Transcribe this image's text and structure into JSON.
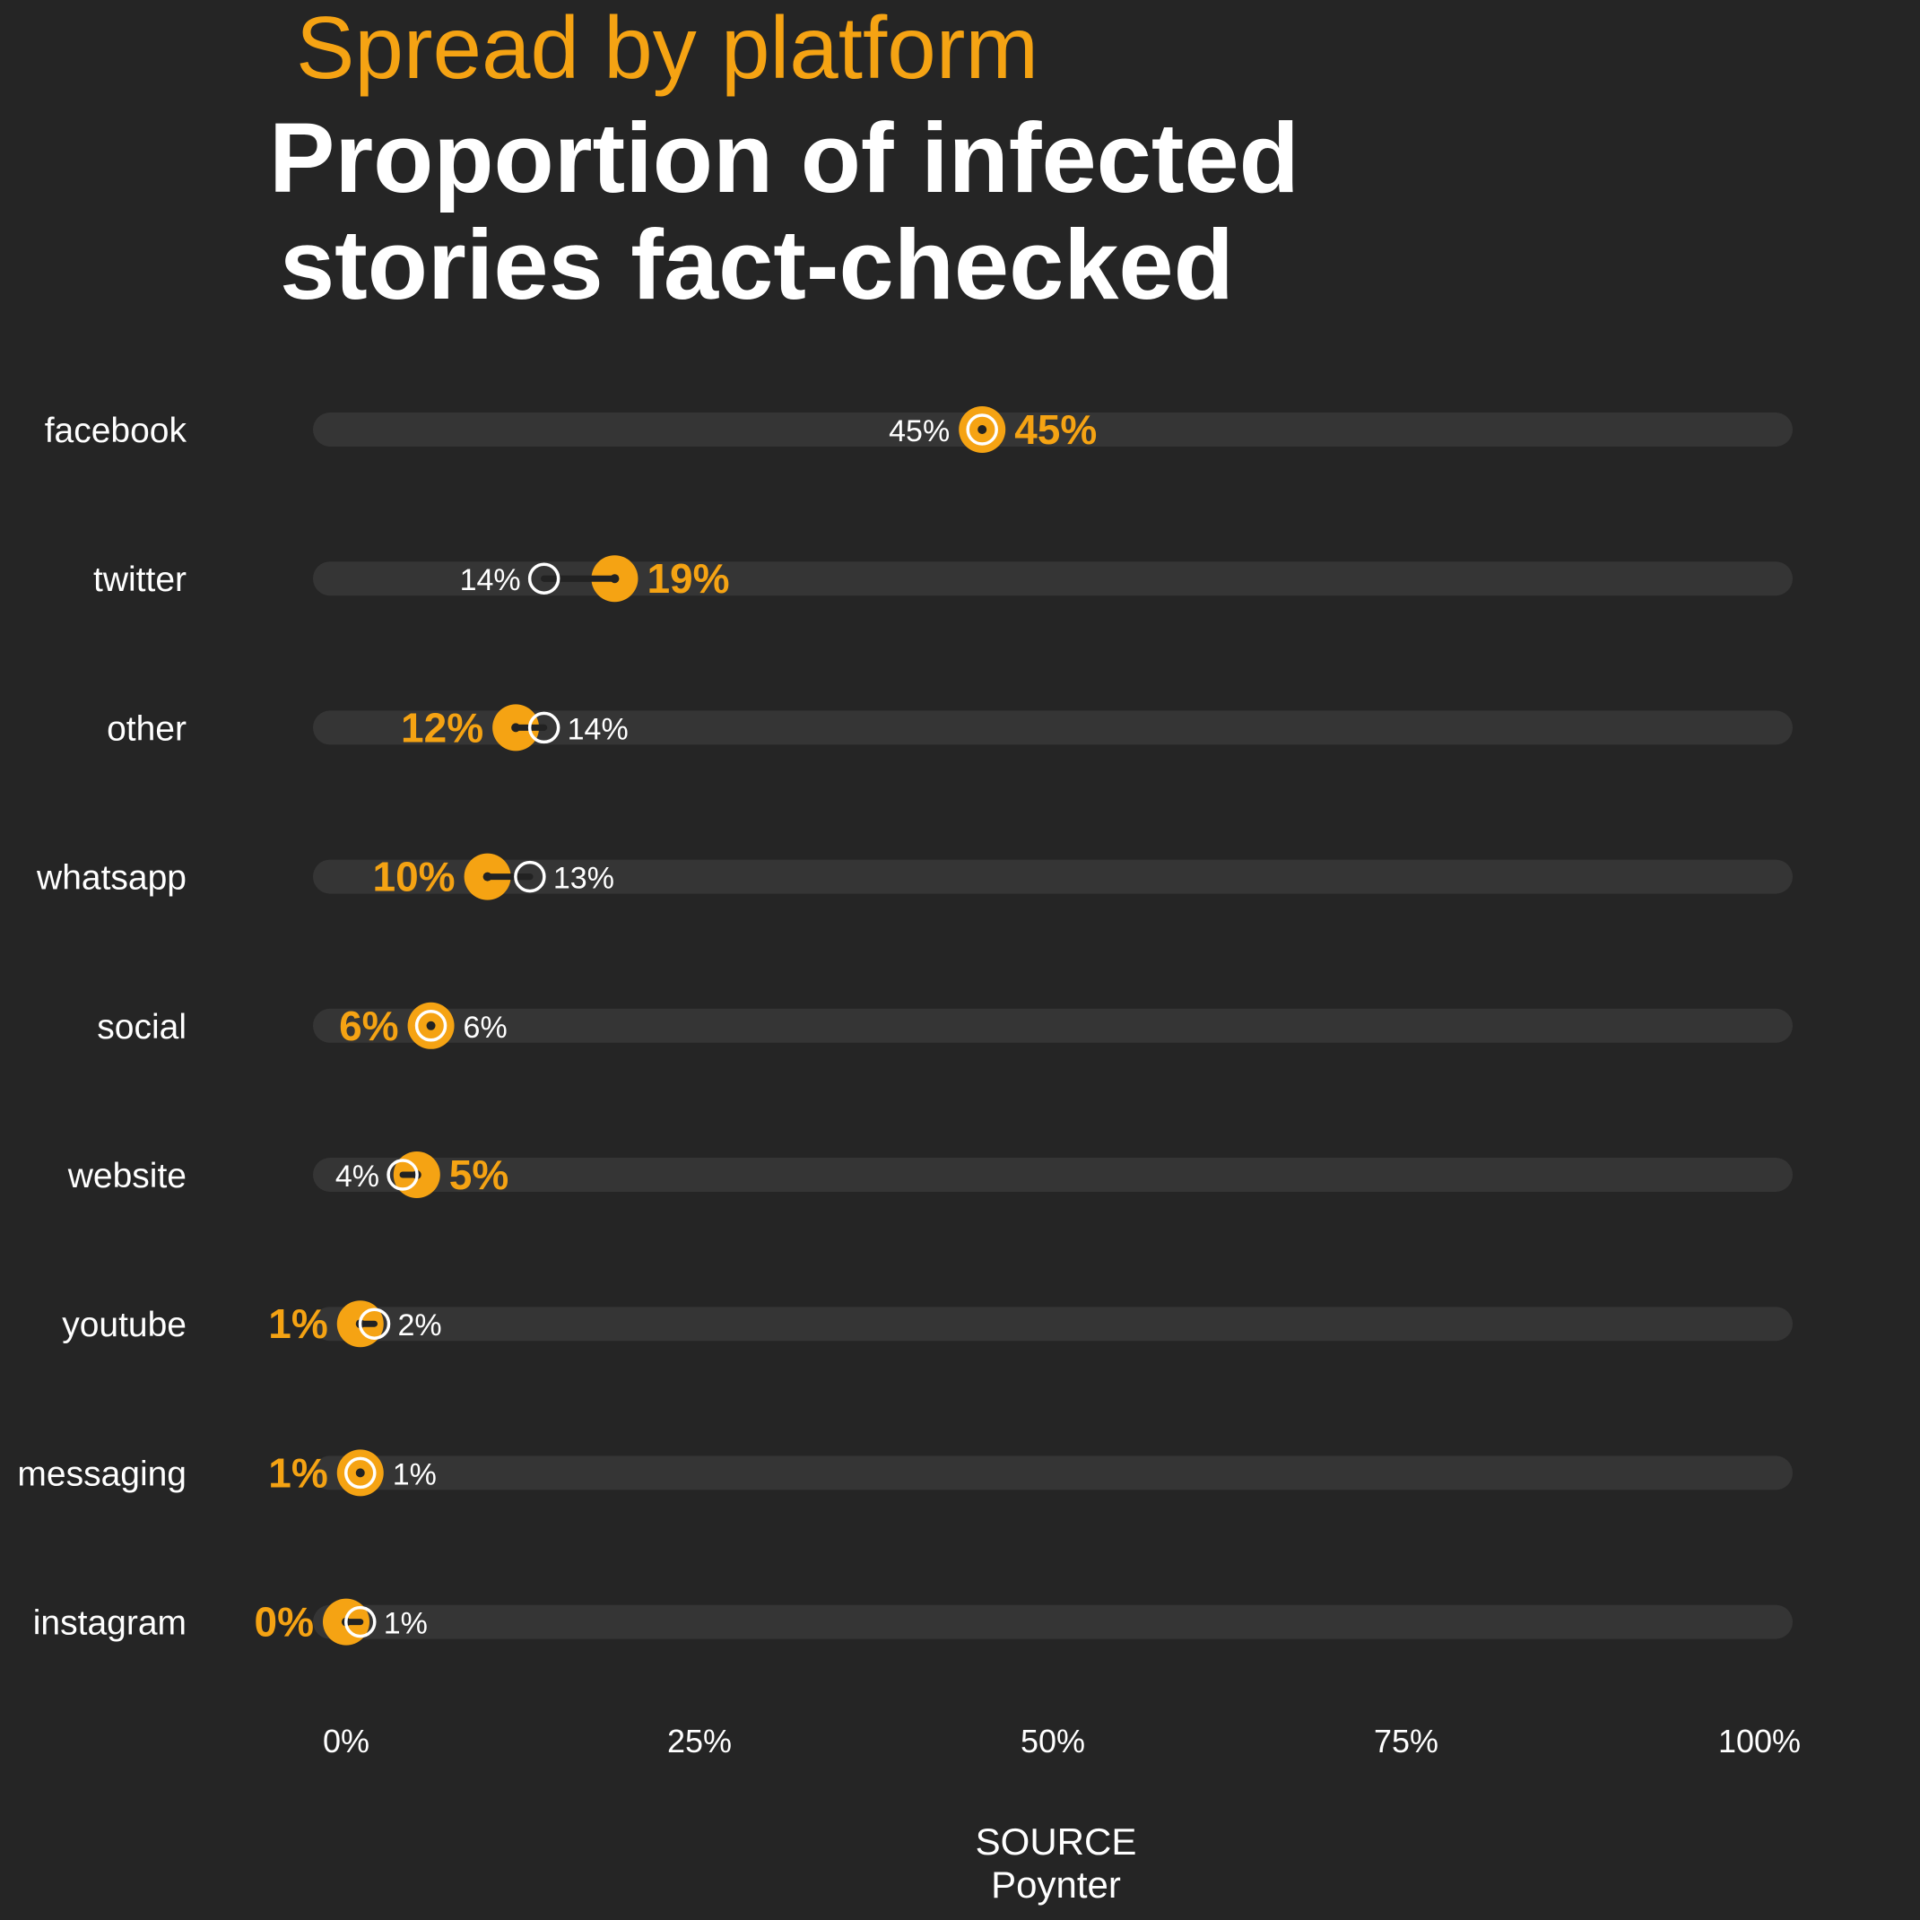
{
  "header": {
    "subtitle": "Spread by platform",
    "title_line1": "Proportion of infected",
    "title_line2": "stories fact-checked"
  },
  "source": {
    "label": "SOURCE",
    "name": "Poynter"
  },
  "colors": {
    "background": "#252525",
    "track": "#353535",
    "accent": "#F5A313",
    "outline": "#ffffff"
  },
  "chart_data": {
    "type": "dumbbell",
    "xlim": [
      0,
      100
    ],
    "x_ticks": [
      "0%",
      "25%",
      "50%",
      "75%",
      "100%"
    ],
    "x_tick_values": [
      0,
      25,
      50,
      75,
      100
    ],
    "categories": [
      "facebook",
      "twitter",
      "other",
      "whatsapp",
      "social",
      "website",
      "youtube",
      "messaging",
      "instagram"
    ],
    "series": [
      {
        "marker": "orange filled circle",
        "values": [
          45,
          19,
          12,
          10,
          6,
          5,
          1,
          1,
          0
        ]
      },
      {
        "marker": "white outlined circle",
        "values": [
          45,
          14,
          14,
          13,
          6,
          4,
          2,
          1,
          1
        ]
      }
    ],
    "rows": [
      {
        "label": "facebook",
        "orange": 45,
        "white": 45,
        "orange_label": "45%",
        "white_label": "45%"
      },
      {
        "label": "twitter",
        "orange": 19,
        "white": 14,
        "orange_label": "19%",
        "white_label": "14%"
      },
      {
        "label": "other",
        "orange": 12,
        "white": 14,
        "orange_label": "12%",
        "white_label": "14%"
      },
      {
        "label": "whatsapp",
        "orange": 10,
        "white": 13,
        "orange_label": "10%",
        "white_label": "13%"
      },
      {
        "label": "social",
        "orange": 6,
        "white": 6,
        "orange_label": "6%",
        "white_label": "6%"
      },
      {
        "label": "website",
        "orange": 5,
        "white": 4,
        "orange_label": "5%",
        "white_label": "4%"
      },
      {
        "label": "youtube",
        "orange": 1,
        "white": 2,
        "orange_label": "1%",
        "white_label": "2%"
      },
      {
        "label": "messaging",
        "orange": 1,
        "white": 1,
        "orange_label": "1%",
        "white_label": "1%"
      },
      {
        "label": "instagram",
        "orange": 0,
        "white": 1,
        "orange_label": "0%",
        "white_label": "1%"
      }
    ]
  }
}
